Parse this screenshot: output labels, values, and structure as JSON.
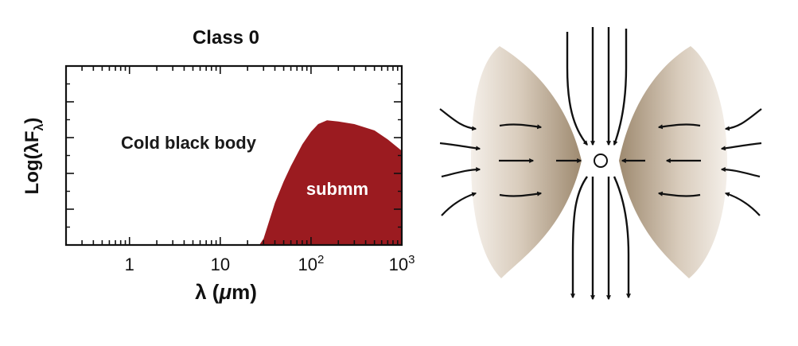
{
  "chart_data": {
    "type": "area",
    "title": "Class 0",
    "xlabel": "λ (μm)",
    "ylabel": "Log(λF_λ)",
    "x_scale": "log",
    "xlim": [
      0.2,
      1000
    ],
    "x_ticks": [
      {
        "value": 1,
        "base": "1",
        "exp": ""
      },
      {
        "value": 10,
        "base": "10",
        "exp": ""
      },
      {
        "value": 100,
        "base": "10",
        "exp": "2"
      },
      {
        "value": 1000,
        "base": "10",
        "exp": "3"
      }
    ],
    "y_ticks_labeled": false,
    "annotations": [
      "Cold black body",
      "submm"
    ],
    "series": [
      {
        "color": "#9b1b20",
        "x": [
          27,
          30,
          35,
          40,
          50,
          60,
          80,
          100,
          120,
          150,
          200,
          300,
          500,
          700,
          1000
        ],
        "y": [
          -1.0,
          0.05,
          0.2,
          0.33,
          0.5,
          0.62,
          0.79,
          0.89,
          0.95,
          0.98,
          0.97,
          0.95,
          0.9,
          0.83,
          0.74
        ]
      }
    ]
  },
  "diagram": {
    "name": "protostar-accretion-outflow",
    "envelope_color": "#a8957a",
    "arrow_color": "#111111"
  }
}
